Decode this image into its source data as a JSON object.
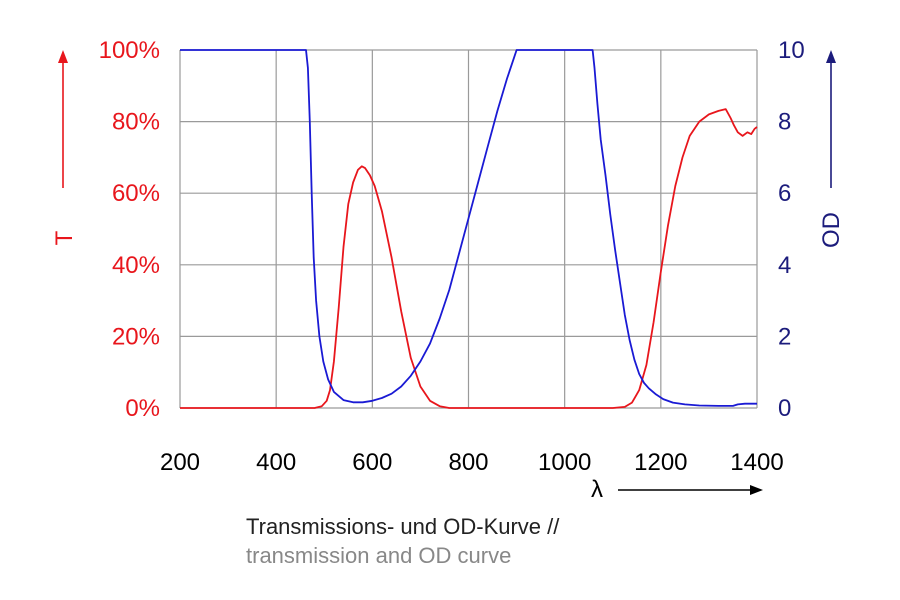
{
  "chart_data": {
    "type": "line",
    "x_range": [
      200,
      1400
    ],
    "x_ticks": [
      "200",
      "400",
      "600",
      "800",
      "1000",
      "1200",
      "1400"
    ],
    "x_label": "λ",
    "left_axis": {
      "label": "T",
      "range": [
        0,
        100
      ],
      "ticks": [
        "0%",
        "20%",
        "40%",
        "60%",
        "80%",
        "100%"
      ],
      "color": "#e8161c"
    },
    "right_axis": {
      "label": "OD",
      "range": [
        0,
        10
      ],
      "ticks": [
        "0",
        "2",
        "4",
        "6",
        "8",
        "10"
      ],
      "color": "#1c1c7c"
    },
    "grid": true,
    "series": [
      {
        "axis": "left",
        "color": "#e8161c",
        "points": [
          [
            200,
            0
          ],
          [
            300,
            0
          ],
          [
            400,
            0
          ],
          [
            480,
            0
          ],
          [
            495,
            0.5
          ],
          [
            505,
            2
          ],
          [
            512,
            5
          ],
          [
            520,
            13
          ],
          [
            530,
            28
          ],
          [
            540,
            45
          ],
          [
            550,
            57
          ],
          [
            560,
            63
          ],
          [
            570,
            66.5
          ],
          [
            578,
            67.5
          ],
          [
            585,
            67
          ],
          [
            595,
            65
          ],
          [
            605,
            62
          ],
          [
            620,
            55
          ],
          [
            640,
            42
          ],
          [
            660,
            27
          ],
          [
            680,
            14
          ],
          [
            700,
            6
          ],
          [
            720,
            2
          ],
          [
            740,
            0.5
          ],
          [
            760,
            0
          ],
          [
            800,
            0
          ],
          [
            900,
            0
          ],
          [
            1000,
            0
          ],
          [
            1100,
            0
          ],
          [
            1125,
            0.3
          ],
          [
            1140,
            1.5
          ],
          [
            1155,
            5
          ],
          [
            1170,
            12
          ],
          [
            1185,
            24
          ],
          [
            1200,
            38
          ],
          [
            1215,
            51
          ],
          [
            1230,
            62
          ],
          [
            1245,
            70
          ],
          [
            1260,
            76
          ],
          [
            1280,
            80
          ],
          [
            1300,
            82
          ],
          [
            1320,
            83
          ],
          [
            1335,
            83.5
          ],
          [
            1345,
            81
          ],
          [
            1352,
            79
          ],
          [
            1360,
            77
          ],
          [
            1370,
            76
          ],
          [
            1380,
            77
          ],
          [
            1388,
            76.5
          ],
          [
            1395,
            78
          ],
          [
            1400,
            78.5
          ]
        ]
      },
      {
        "axis": "right",
        "color": "#1a1ad4",
        "points": [
          [
            200,
            10
          ],
          [
            300,
            10
          ],
          [
            400,
            10
          ],
          [
            462,
            10
          ],
          [
            466,
            9.5
          ],
          [
            470,
            8
          ],
          [
            474,
            6
          ],
          [
            478,
            4.2
          ],
          [
            483,
            3
          ],
          [
            490,
            2
          ],
          [
            498,
            1.3
          ],
          [
            508,
            0.8
          ],
          [
            520,
            0.45
          ],
          [
            540,
            0.22
          ],
          [
            560,
            0.16
          ],
          [
            580,
            0.16
          ],
          [
            600,
            0.2
          ],
          [
            620,
            0.28
          ],
          [
            640,
            0.4
          ],
          [
            660,
            0.6
          ],
          [
            680,
            0.9
          ],
          [
            700,
            1.3
          ],
          [
            720,
            1.8
          ],
          [
            740,
            2.5
          ],
          [
            760,
            3.3
          ],
          [
            780,
            4.3
          ],
          [
            800,
            5.3
          ],
          [
            820,
            6.3
          ],
          [
            840,
            7.3
          ],
          [
            860,
            8.3
          ],
          [
            880,
            9.2
          ],
          [
            895,
            9.8
          ],
          [
            900,
            10
          ],
          [
            1000,
            10
          ],
          [
            1058,
            10
          ],
          [
            1062,
            9.5
          ],
          [
            1068,
            8.5
          ],
          [
            1075,
            7.5
          ],
          [
            1085,
            6.5
          ],
          [
            1095,
            5.4
          ],
          [
            1105,
            4.4
          ],
          [
            1115,
            3.5
          ],
          [
            1125,
            2.6
          ],
          [
            1135,
            1.9
          ],
          [
            1145,
            1.35
          ],
          [
            1155,
            0.95
          ],
          [
            1165,
            0.7
          ],
          [
            1175,
            0.55
          ],
          [
            1190,
            0.38
          ],
          [
            1205,
            0.25
          ],
          [
            1225,
            0.15
          ],
          [
            1250,
            0.1
          ],
          [
            1280,
            0.07
          ],
          [
            1320,
            0.06
          ],
          [
            1350,
            0.06
          ],
          [
            1360,
            0.1
          ],
          [
            1375,
            0.12
          ],
          [
            1390,
            0.12
          ],
          [
            1400,
            0.12
          ]
        ]
      }
    ]
  },
  "caption": {
    "line1": "Transmissions- und OD-Kurve //",
    "line2": "transmission and OD curve"
  }
}
